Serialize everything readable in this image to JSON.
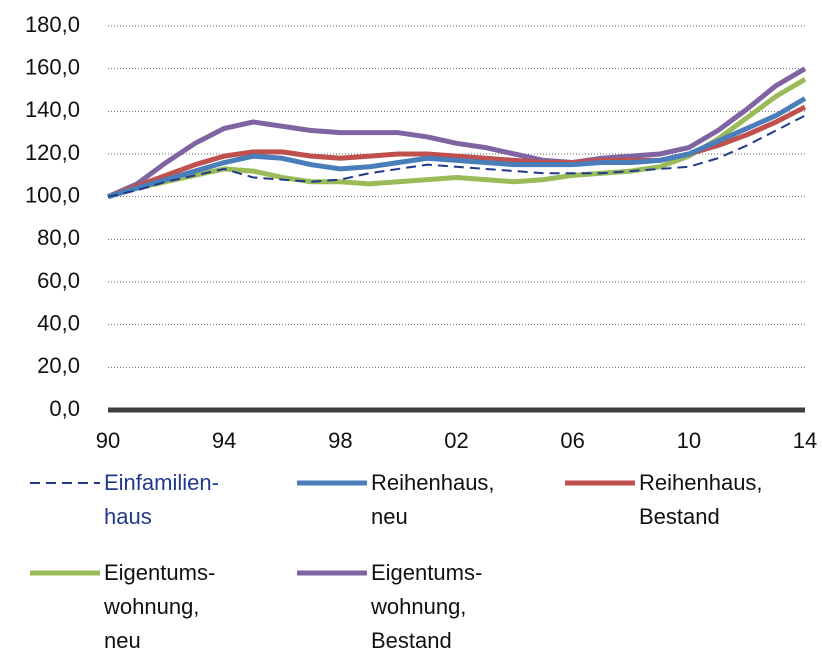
{
  "chart_data": {
    "type": "line",
    "categories": [
      "90",
      null,
      null,
      null,
      "94",
      null,
      null,
      null,
      "98",
      null,
      null,
      null,
      "02",
      null,
      null,
      null,
      "06",
      null,
      null,
      null,
      "10",
      null,
      null,
      null,
      "14"
    ],
    "ylim": [
      0,
      180
    ],
    "yticks": [
      {
        "value": 0,
        "label": "0,0"
      },
      {
        "value": 20,
        "label": "20,0"
      },
      {
        "value": 40,
        "label": "40,0"
      },
      {
        "value": 60,
        "label": "60,0"
      },
      {
        "value": 80,
        "label": "80,0"
      },
      {
        "value": 100,
        "label": "100,0"
      },
      {
        "value": 120,
        "label": "120,0"
      },
      {
        "value": 140,
        "label": "140,0"
      },
      {
        "value": 160,
        "label": "160,0"
      },
      {
        "value": 180,
        "label": "180,0"
      }
    ],
    "grid": true,
    "series": [
      {
        "name": "Einfamilien-\nhaus",
        "color": "#1f3a8a",
        "dashed": true,
        "values": [
          100,
          103,
          107,
          110,
          113,
          109,
          108,
          107,
          108,
          111,
          113,
          115,
          114,
          113,
          112,
          111,
          111,
          111,
          112,
          113,
          114,
          118,
          124,
          131,
          138
        ]
      },
      {
        "name": "Reihenhaus,\nneu",
        "color": "#4a7ebb",
        "values": [
          100,
          104,
          108,
          112,
          116,
          119,
          118,
          115,
          113,
          114,
          116,
          118,
          117,
          116,
          115,
          115,
          115,
          116,
          116,
          117,
          120,
          126,
          132,
          138,
          146
        ]
      },
      {
        "name": "Reihenhaus,\nBestand",
        "color": "#c0504d",
        "values": [
          100,
          105,
          110,
          115,
          119,
          121,
          121,
          119,
          118,
          119,
          120,
          120,
          119,
          118,
          117,
          116,
          116,
          117,
          117,
          117,
          120,
          124,
          129,
          135,
          142
        ]
      },
      {
        "name": "Eigentums-\nwohnung,\nneu",
        "color": "#9bbb59",
        "values": [
          100,
          104,
          107,
          110,
          113,
          112,
          109,
          107,
          107,
          106,
          107,
          108,
          109,
          108,
          107,
          108,
          110,
          111,
          112,
          114,
          119,
          127,
          137,
          147,
          155
        ]
      },
      {
        "name": "Eigentums-\nwohnung,\nBestand",
        "color": "#8064a2",
        "values": [
          100,
          106,
          116,
          125,
          132,
          135,
          133,
          131,
          130,
          130,
          130,
          128,
          125,
          123,
          120,
          117,
          116,
          118,
          119,
          120,
          123,
          131,
          141,
          152,
          160
        ]
      }
    ]
  }
}
